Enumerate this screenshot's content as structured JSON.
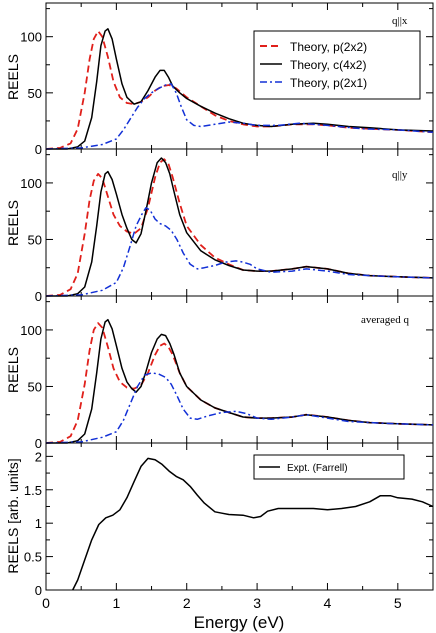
{
  "chart_data": [
    {
      "type": "line",
      "annotation": "q||x",
      "ylabel": "REELS",
      "xlim": [
        0,
        5.5
      ],
      "ylim": [
        0,
        130
      ],
      "yticks": [
        0,
        50,
        100
      ],
      "legend": {
        "position": "top-right",
        "entries": [
          "Theory, p(2x2)",
          "Theory, c(4x2)",
          "Theory, p(2x1)"
        ]
      },
      "series": [
        {
          "name": "Theory, p(2x2)",
          "color": "#e0201b",
          "style": "dashed",
          "x": [
            0,
            0.2,
            0.35,
            0.45,
            0.55,
            0.62,
            0.68,
            0.74,
            0.8,
            0.88,
            0.96,
            1.05,
            1.15,
            1.25,
            1.35,
            1.45,
            1.55,
            1.65,
            1.75,
            1.85,
            2.0,
            2.2,
            2.4,
            2.6,
            2.8,
            3.0,
            3.2,
            3.5,
            3.8,
            4.0,
            4.3,
            4.6,
            5.0,
            5.5
          ],
          "y": [
            0,
            1,
            5,
            18,
            50,
            80,
            98,
            105,
            100,
            82,
            60,
            46,
            41,
            40,
            42,
            46,
            52,
            56,
            57,
            54,
            46,
            38,
            30,
            25,
            22,
            20,
            20,
            22,
            22,
            21,
            19,
            18,
            17,
            15
          ]
        },
        {
          "name": "Theory, c(4x2)",
          "color": "#000000",
          "style": "solid",
          "x": [
            0,
            0.3,
            0.45,
            0.55,
            0.65,
            0.72,
            0.78,
            0.84,
            0.88,
            0.94,
            1.0,
            1.08,
            1.15,
            1.25,
            1.35,
            1.45,
            1.55,
            1.62,
            1.68,
            1.74,
            1.8,
            1.9,
            2.0,
            2.2,
            2.4,
            2.6,
            2.8,
            3.0,
            3.2,
            3.5,
            3.8,
            4.0,
            4.3,
            4.6,
            5.0,
            5.5
          ],
          "y": [
            0,
            0,
            2,
            7,
            28,
            60,
            92,
            105,
            107,
            98,
            80,
            58,
            46,
            40,
            42,
            52,
            64,
            70,
            70,
            64,
            56,
            50,
            45,
            38,
            32,
            27,
            23,
            21,
            20,
            22,
            23,
            22,
            20,
            19,
            17,
            16
          ]
        },
        {
          "name": "Theory, p(2x1)",
          "color": "#1230d6",
          "style": "dashdot",
          "x": [
            0,
            0.5,
            0.8,
            1.0,
            1.1,
            1.2,
            1.3,
            1.4,
            1.5,
            1.6,
            1.7,
            1.78,
            1.85,
            1.92,
            2.0,
            2.1,
            2.2,
            2.4,
            2.6,
            2.8,
            3.0,
            3.3,
            3.6,
            4.0,
            4.5,
            5.0,
            5.5
          ],
          "y": [
            0,
            1,
            4,
            9,
            17,
            27,
            37,
            45,
            50,
            54,
            57,
            58,
            50,
            38,
            26,
            21,
            20,
            22,
            24,
            23,
            21,
            21,
            23,
            21,
            18,
            17,
            15
          ]
        }
      ]
    },
    {
      "type": "line",
      "annotation": "q||y",
      "ylabel": "REELS",
      "xlim": [
        0,
        5.5
      ],
      "ylim": [
        0,
        130
      ],
      "yticks": [
        0,
        50,
        100
      ],
      "series": [
        {
          "name": "Theory, p(2x2)",
          "color": "#e0201b",
          "style": "dashed",
          "x": [
            0,
            0.2,
            0.35,
            0.45,
            0.55,
            0.62,
            0.68,
            0.74,
            0.8,
            0.88,
            0.96,
            1.05,
            1.15,
            1.25,
            1.35,
            1.45,
            1.55,
            1.62,
            1.68,
            1.74,
            1.8,
            1.9,
            2.0,
            2.2,
            2.4,
            2.6,
            2.8,
            3.0,
            3.2,
            3.5,
            3.7,
            4.0,
            4.3,
            4.6,
            5.0,
            5.5
          ],
          "y": [
            0,
            1,
            6,
            20,
            55,
            85,
            102,
            108,
            104,
            88,
            72,
            62,
            57,
            55,
            60,
            78,
            105,
            118,
            121,
            117,
            105,
            82,
            62,
            45,
            34,
            28,
            23,
            22,
            22,
            24,
            26,
            24,
            20,
            18,
            17,
            16
          ]
        },
        {
          "name": "Theory, c(4x2)",
          "color": "#000000",
          "style": "solid",
          "x": [
            0,
            0.3,
            0.45,
            0.55,
            0.65,
            0.72,
            0.78,
            0.84,
            0.88,
            0.94,
            1.0,
            1.08,
            1.15,
            1.22,
            1.28,
            1.35,
            1.42,
            1.5,
            1.58,
            1.64,
            1.7,
            1.76,
            1.82,
            1.9,
            2.0,
            2.2,
            2.4,
            2.6,
            2.8,
            3.0,
            3.2,
            3.5,
            3.7,
            4.0,
            4.3,
            4.6,
            5.0,
            5.5
          ],
          "y": [
            0,
            0,
            2,
            8,
            30,
            62,
            92,
            108,
            110,
            103,
            90,
            72,
            60,
            50,
            47,
            55,
            75,
            100,
            118,
            122,
            118,
            108,
            92,
            72,
            56,
            40,
            32,
            27,
            23,
            22,
            22,
            24,
            26,
            24,
            20,
            18,
            17,
            16
          ]
        },
        {
          "name": "Theory, p(2x1)",
          "color": "#1230d6",
          "style": "dashdot",
          "x": [
            0,
            0.5,
            0.8,
            1.0,
            1.1,
            1.2,
            1.28,
            1.36,
            1.42,
            1.48,
            1.55,
            1.62,
            1.7,
            1.78,
            1.86,
            1.95,
            2.05,
            2.15,
            2.25,
            2.4,
            2.55,
            2.7,
            2.8,
            2.9,
            3.0,
            3.2,
            3.5,
            3.7,
            4.0,
            4.3,
            4.6,
            5.0,
            5.5
          ],
          "y": [
            0,
            1,
            5,
            12,
            25,
            45,
            62,
            72,
            78,
            76,
            68,
            64,
            62,
            58,
            50,
            38,
            28,
            24,
            25,
            27,
            30,
            31,
            30,
            28,
            24,
            21,
            22,
            24,
            22,
            19,
            18,
            17,
            16
          ]
        }
      ]
    },
    {
      "type": "line",
      "annotation": "averaged q",
      "ylabel": "REELS",
      "xlim": [
        0,
        5.5
      ],
      "ylim": [
        0,
        130
      ],
      "yticks": [
        0,
        50,
        100
      ],
      "series": [
        {
          "name": "Theory, p(2x2)",
          "color": "#e0201b",
          "style": "dashed",
          "x": [
            0,
            0.2,
            0.35,
            0.45,
            0.55,
            0.62,
            0.68,
            0.74,
            0.8,
            0.88,
            0.96,
            1.05,
            1.15,
            1.25,
            1.35,
            1.45,
            1.55,
            1.62,
            1.68,
            1.74,
            1.8,
            1.9,
            2.0,
            2.2,
            2.4,
            2.6,
            2.8,
            3.0,
            3.2,
            3.5,
            3.7,
            4.0,
            4.3,
            4.6,
            5.0,
            5.5
          ],
          "y": [
            0,
            1,
            6,
            20,
            52,
            82,
            100,
            106,
            102,
            85,
            66,
            54,
            49,
            48,
            51,
            62,
            78,
            86,
            88,
            85,
            78,
            62,
            50,
            38,
            31,
            27,
            23,
            22,
            22,
            23,
            25,
            23,
            20,
            18,
            17,
            16
          ]
        },
        {
          "name": "Theory, c(4x2)",
          "color": "#000000",
          "style": "solid",
          "x": [
            0,
            0.3,
            0.45,
            0.55,
            0.65,
            0.72,
            0.78,
            0.84,
            0.88,
            0.94,
            1.0,
            1.08,
            1.15,
            1.22,
            1.28,
            1.35,
            1.42,
            1.5,
            1.58,
            1.64,
            1.7,
            1.76,
            1.82,
            1.9,
            2.0,
            2.2,
            2.4,
            2.6,
            2.8,
            3.0,
            3.2,
            3.5,
            3.7,
            4.0,
            4.3,
            4.6,
            5.0,
            5.5
          ],
          "y": [
            0,
            0,
            2,
            8,
            30,
            62,
            92,
            107,
            109,
            101,
            86,
            66,
            54,
            48,
            45,
            50,
            63,
            80,
            92,
            96,
            95,
            88,
            78,
            62,
            50,
            38,
            31,
            27,
            23,
            22,
            22,
            23,
            25,
            23,
            20,
            18,
            17,
            16
          ]
        },
        {
          "name": "Theory, p(2x1)",
          "color": "#1230d6",
          "style": "dashdot",
          "x": [
            0,
            0.5,
            0.8,
            1.0,
            1.1,
            1.2,
            1.3,
            1.4,
            1.5,
            1.6,
            1.7,
            1.78,
            1.86,
            1.95,
            2.05,
            2.15,
            2.3,
            2.5,
            2.7,
            2.85,
            3.0,
            3.2,
            3.5,
            3.7,
            4.0,
            4.3,
            4.6,
            5.0,
            5.5
          ],
          "y": [
            0,
            1,
            5,
            10,
            20,
            35,
            50,
            60,
            62,
            61,
            58,
            52,
            42,
            30,
            22,
            21,
            24,
            27,
            28,
            26,
            22,
            21,
            23,
            25,
            22,
            19,
            18,
            17,
            16
          ]
        }
      ]
    },
    {
      "type": "line",
      "xlabel": "Energy (eV)",
      "ylabel": "REELS [arb. units]",
      "xlim": [
        0,
        5.5
      ],
      "ylim": [
        0,
        2.2
      ],
      "yticks": [
        0,
        0.5,
        1,
        1.5,
        2
      ],
      "ytick_labels": [
        "0",
        "0.5",
        "1",
        "1.5",
        "2"
      ],
      "xticks": [
        0,
        1,
        2,
        3,
        4,
        5
      ],
      "legend": {
        "position": "top-right",
        "entries": [
          "Expt. (Farrell)"
        ]
      },
      "series": [
        {
          "name": "Expt. (Farrell)",
          "color": "#000000",
          "style": "solid",
          "x": [
            0.38,
            0.45,
            0.55,
            0.65,
            0.75,
            0.85,
            0.95,
            1.05,
            1.15,
            1.25,
            1.35,
            1.45,
            1.55,
            1.65,
            1.75,
            1.85,
            1.95,
            2.05,
            2.15,
            2.25,
            2.4,
            2.5,
            2.6,
            2.8,
            2.95,
            3.05,
            3.15,
            3.3,
            3.5,
            3.8,
            4.0,
            4.2,
            4.4,
            4.6,
            4.75,
            4.9,
            5.0,
            5.2,
            5.35,
            5.5
          ],
          "y": [
            0.0,
            0.15,
            0.45,
            0.75,
            0.98,
            1.08,
            1.12,
            1.2,
            1.38,
            1.62,
            1.85,
            1.97,
            1.95,
            1.88,
            1.78,
            1.7,
            1.65,
            1.55,
            1.42,
            1.3,
            1.17,
            1.15,
            1.13,
            1.12,
            1.08,
            1.1,
            1.18,
            1.22,
            1.22,
            1.22,
            1.2,
            1.22,
            1.25,
            1.32,
            1.41,
            1.41,
            1.38,
            1.36,
            1.32,
            1.25
          ]
        }
      ]
    }
  ]
}
